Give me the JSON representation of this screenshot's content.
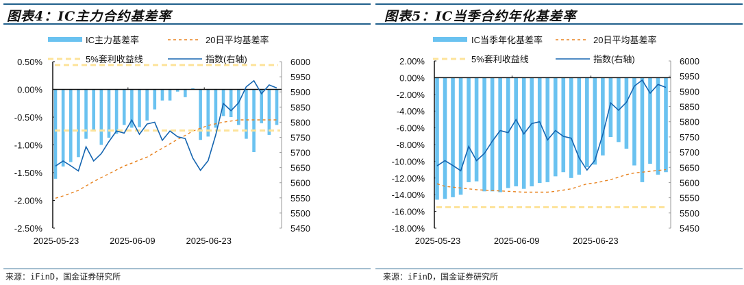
{
  "chart_data": [
    {
      "type": "bar",
      "title": "图表4：IC主力合约基差率",
      "source": "来源：iFinD，国金证券研究所",
      "x_tick_labels": [
        "2025-05-23",
        "2025-06-09",
        "2025-06-23"
      ],
      "left_axis": {
        "ylim": [
          -2.5,
          0.5
        ],
        "ticks": [
          "0.50%",
          "0.00%",
          "-0.50%",
          "-1.00%",
          "-1.50%",
          "-2.00%",
          "-2.50%"
        ]
      },
      "right_axis": {
        "ylim": [
          5450,
          6000
        ],
        "ticks": [
          "6000",
          "5950",
          "5900",
          "5850",
          "5800",
          "5750",
          "5700",
          "5650",
          "5600",
          "5550",
          "5500",
          "5450"
        ]
      },
      "legend": [
        "IC主力基差率",
        "20日平均基差率",
        "5%套利收益线",
        "指数(右轴)"
      ],
      "legend_position": "top",
      "series": [
        {
          "name": "IC主力基差率",
          "kind": "bar",
          "axis": "left",
          "color": "#6ac2f0",
          "values": [
            -1.61,
            -1.39,
            -1.31,
            -1.22,
            -0.89,
            -0.76,
            -1.0,
            -0.87,
            -0.8,
            -0.64,
            -0.69,
            -0.68,
            -0.56,
            -0.36,
            -0.2,
            -0.2,
            -0.04,
            -0.14,
            0.02,
            -0.91,
            -0.85,
            -0.69,
            -0.48,
            -0.5,
            -0.64,
            -0.89,
            -1.13,
            -0.61,
            -0.82,
            -0.64
          ]
        },
        {
          "name": "20日平均基差率",
          "kind": "dashed-line",
          "axis": "left",
          "color": "#e8821e",
          "values": [
            -1.96,
            -1.92,
            -1.87,
            -1.82,
            -1.74,
            -1.66,
            -1.59,
            -1.52,
            -1.45,
            -1.38,
            -1.33,
            -1.27,
            -1.22,
            -1.14,
            -1.06,
            -0.98,
            -0.9,
            -0.83,
            -0.75,
            -0.7,
            -0.65,
            -0.62,
            -0.59,
            -0.57,
            -0.55,
            -0.55,
            -0.55,
            -0.55,
            -0.55,
            -0.55
          ]
        },
        {
          "name": "5%套利收益线",
          "kind": "hlines",
          "axis": "left",
          "color": "#fde39a",
          "values": [
            0.44,
            -0.74
          ]
        },
        {
          "name": "指数(右轴)",
          "kind": "line",
          "axis": "right",
          "color": "#1565b0",
          "values": [
            5655,
            5672,
            5656,
            5639,
            5719,
            5672,
            5696,
            5736,
            5771,
            5764,
            5807,
            5760,
            5794,
            5800,
            5740,
            5771,
            5752,
            5746,
            5681,
            5641,
            5673,
            5758,
            5862,
            5838,
            5864,
            5917,
            5937,
            5894,
            5923,
            5913
          ]
        }
      ]
    },
    {
      "type": "bar",
      "title": "图表5：IC当季合约年化基差率",
      "source": "来源：iFinD，国金证券研究所",
      "x_tick_labels": [
        "2025-05-23",
        "2025-06-09",
        "2025-06-23"
      ],
      "left_axis": {
        "ylim": [
          -18,
          2
        ],
        "ticks": [
          "2.00%",
          "0.00%",
          "-2.00%",
          "-4.00%",
          "-6.00%",
          "-8.00%",
          "-10.00%",
          "-12.00%",
          "-14.00%",
          "-16.00%",
          "-18.00%"
        ]
      },
      "right_axis": {
        "ylim": [
          5450,
          6000
        ],
        "ticks": [
          "6000",
          "5950",
          "5900",
          "5850",
          "5800",
          "5750",
          "5700",
          "5650",
          "5600",
          "5550",
          "5500",
          "5450"
        ]
      },
      "legend": [
        "IC当季年化基差率",
        "20日平均基差率",
        "5%套利收益线",
        "指数(右轴)"
      ],
      "legend_position": "top",
      "series": [
        {
          "name": "IC当季年化基差率",
          "kind": "bar",
          "axis": "left",
          "color": "#6ac2f0",
          "values": [
            -14.6,
            -14.5,
            -14.3,
            -14.0,
            -12.5,
            -12.4,
            -13.6,
            -13.6,
            -13.7,
            -13.2,
            -13.0,
            -13.3,
            -13.0,
            -12.6,
            -12.5,
            -11.8,
            -11.3,
            -12.0,
            -11.6,
            -10.7,
            -10.4,
            -9.3,
            -7.1,
            -7.7,
            -8.5,
            -10.5,
            -12.5,
            -10.3,
            -11.6,
            -11.3
          ]
        },
        {
          "name": "20日平均基差率",
          "kind": "dashed-line",
          "axis": "left",
          "color": "#e8821e",
          "values": [
            -12.7,
            -13.0,
            -13.1,
            -13.2,
            -13.3,
            -13.4,
            -13.45,
            -13.5,
            -13.55,
            -13.6,
            -13.65,
            -13.7,
            -13.7,
            -13.7,
            -13.7,
            -13.6,
            -13.45,
            -13.3,
            -13.0,
            -12.7,
            -12.6,
            -12.4,
            -12.2,
            -11.9,
            -11.6,
            -11.4,
            -11.3,
            -11.2,
            -11.1,
            -11.0
          ]
        },
        {
          "name": "5%套利收益线",
          "kind": "hlines",
          "axis": "left",
          "color": "#fde39a",
          "values": [
            -15.5
          ]
        },
        {
          "name": "指数(右轴)",
          "kind": "line",
          "axis": "right",
          "color": "#1565b0",
          "values": [
            5655,
            5672,
            5656,
            5639,
            5719,
            5672,
            5696,
            5736,
            5771,
            5764,
            5807,
            5760,
            5794,
            5800,
            5740,
            5771,
            5752,
            5746,
            5681,
            5641,
            5673,
            5758,
            5862,
            5838,
            5864,
            5917,
            5937,
            5894,
            5923,
            5913
          ]
        }
      ]
    }
  ]
}
